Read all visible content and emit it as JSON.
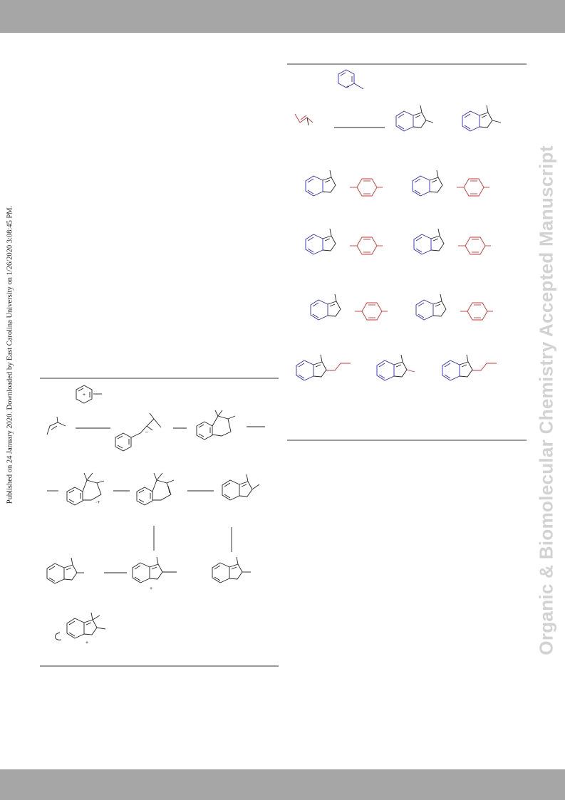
{
  "page": {
    "header_bar_color": "#a6a6a6",
    "footer_bar_color": "#a6a6a6"
  },
  "watermark": {
    "text": "Organic & Biomolecular Chemistry Accepted Manuscript",
    "color": "#d2d2d2"
  },
  "publication_note": {
    "text": "Published on 24 January 2020. Downloaded by East Carolina University on 1/26/2020 3:08:45 PM."
  },
  "colors": {
    "pyridine_fragment": "#2a2ad6",
    "aryl_fragment": "#d93030",
    "bonds": "#222222"
  },
  "schemes": [
    {
      "name": "substrate-scope-scheme",
      "color_coding": [
        "blue",
        "red"
      ]
    },
    {
      "name": "mechanism-scheme",
      "color_coding": [
        "black"
      ]
    }
  ]
}
